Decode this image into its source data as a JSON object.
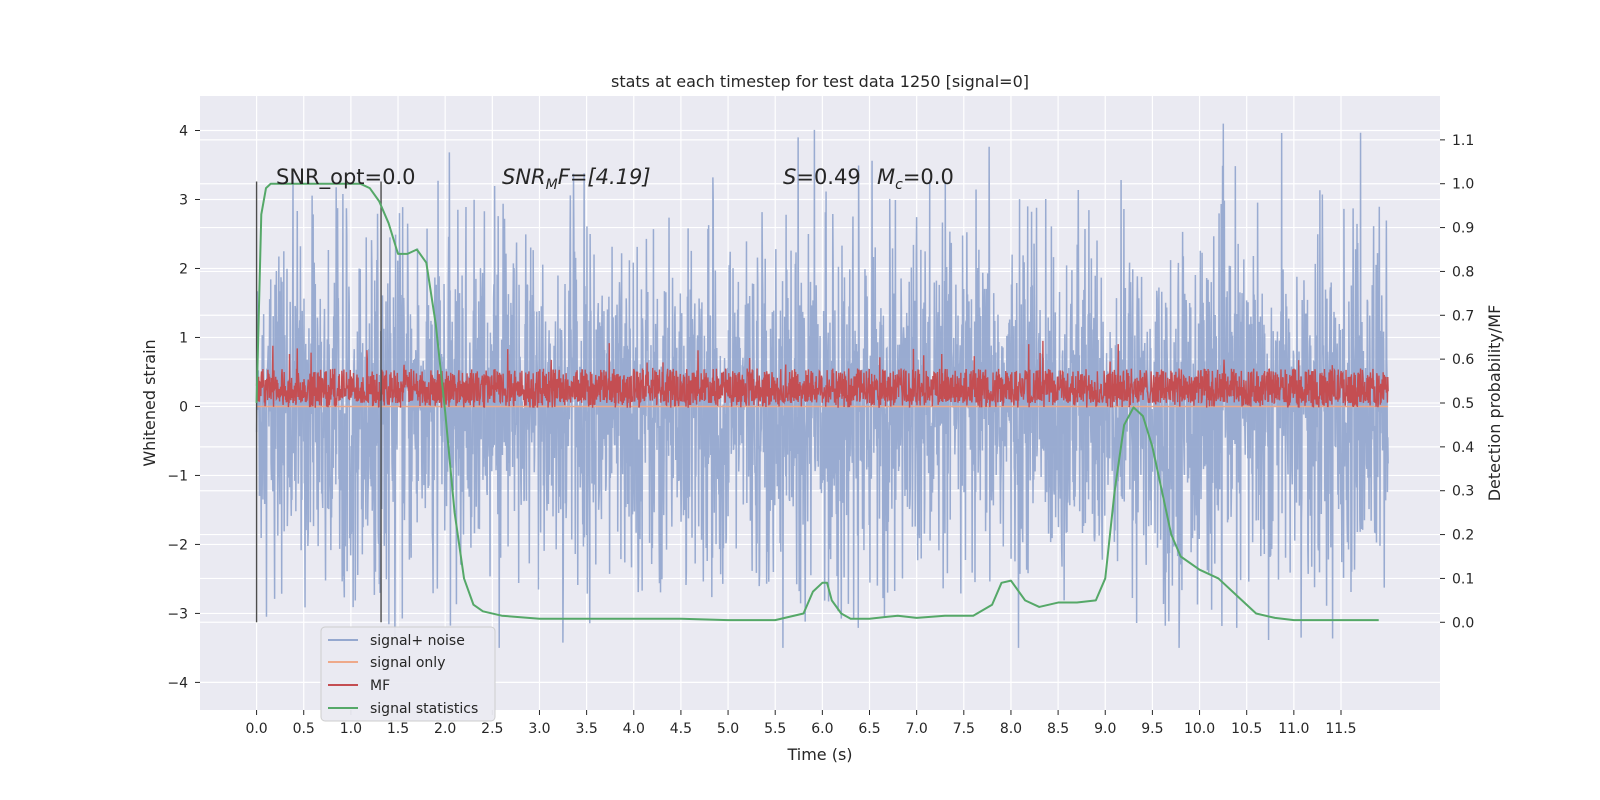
{
  "chart_data": {
    "type": "line",
    "title": "stats at each timestep for test data 1250 [signal=0]",
    "xlabel": "Time (s)",
    "ylabel": "Whitened strain",
    "ylabel_right": "Detection probability/MF",
    "xlim": [
      -0.6,
      12.55
    ],
    "ylim": [
      -4.4,
      4.5
    ],
    "ylim_right": [
      -0.2,
      1.2
    ],
    "x_ticks": [
      "0.0",
      "0.5",
      "1.0",
      "1.5",
      "2.0",
      "2.5",
      "3.0",
      "3.5",
      "4.0",
      "4.5",
      "5.0",
      "5.5",
      "6.0",
      "6.5",
      "7.0",
      "7.5",
      "8.0",
      "8.5",
      "9.0",
      "9.5",
      "10.0",
      "10.5",
      "11.0",
      "11.5"
    ],
    "y_ticks": [
      "4",
      "3",
      "2",
      "1",
      "0",
      "−1",
      "−2",
      "−3",
      "−4"
    ],
    "y_ticks_right": [
      "1.1",
      "1.0",
      "0.9",
      "0.8",
      "0.7",
      "0.6",
      "0.5",
      "0.4",
      "0.3",
      "0.2",
      "0.1",
      "0.0"
    ],
    "grid": true,
    "legend_position": "lower-left",
    "annotations": {
      "snr_opt": "SNR_opt=0.0",
      "snr_mf_sym": "SNR",
      "snr_mf_sub": "M",
      "snr_mf_rest": "F=[4.19]",
      "s_sym": "S",
      "s_val": "=0.49",
      "mc_sym": "M",
      "mc_sub": "c",
      "mc_val": "=0.0"
    },
    "vertical_markers": [
      0.0,
      1.32
    ],
    "series": [
      {
        "name": "signal+ noise",
        "color": "#95a8cf",
        "axis": "left",
        "x_range": [
          0.0,
          12.0
        ],
        "samples": 3200,
        "typical_range": [
          -2.0,
          2.0
        ],
        "peak_max": 4.1,
        "peak_min": -3.5
      },
      {
        "name": "signal only",
        "color": "#eea98a",
        "axis": "left",
        "x": [
          0.0,
          12.0
        ],
        "values": [
          0.0,
          0.0
        ]
      },
      {
        "name": "MF",
        "color": "#c44e52",
        "axis": "left",
        "x_range": [
          0.0,
          12.0
        ],
        "samples": 3200,
        "typical_range": [
          0.05,
          0.55
        ],
        "peak_max": 0.98,
        "peak_min": -0.02
      },
      {
        "name": "signal statistics",
        "color": "#55a868",
        "axis": "right",
        "x": [
          0.0,
          0.05,
          0.1,
          0.15,
          0.2,
          0.3,
          0.5,
          0.8,
          1.0,
          1.1,
          1.2,
          1.3,
          1.4,
          1.5,
          1.6,
          1.7,
          1.8,
          1.9,
          2.0,
          2.1,
          2.2,
          2.3,
          2.4,
          2.6,
          3.0,
          3.5,
          4.0,
          4.5,
          5.0,
          5.5,
          5.8,
          5.9,
          6.0,
          6.05,
          6.1,
          6.2,
          6.3,
          6.5,
          6.8,
          7.0,
          7.3,
          7.6,
          7.8,
          7.9,
          8.0,
          8.05,
          8.15,
          8.3,
          8.5,
          8.7,
          8.9,
          9.0,
          9.1,
          9.2,
          9.3,
          9.4,
          9.5,
          9.6,
          9.7,
          9.8,
          10.0,
          10.2,
          10.4,
          10.6,
          10.8,
          11.0,
          11.5,
          11.9
        ],
        "values": [
          0.5,
          0.93,
          0.99,
          1.0,
          1.0,
          1.0,
          1.0,
          1.0,
          1.0,
          1.0,
          0.99,
          0.96,
          0.91,
          0.84,
          0.84,
          0.85,
          0.82,
          0.68,
          0.48,
          0.25,
          0.1,
          0.04,
          0.025,
          0.015,
          0.008,
          0.008,
          0.008,
          0.008,
          0.005,
          0.005,
          0.02,
          0.07,
          0.09,
          0.09,
          0.05,
          0.02,
          0.008,
          0.008,
          0.015,
          0.01,
          0.015,
          0.015,
          0.04,
          0.09,
          0.095,
          0.08,
          0.05,
          0.035,
          0.045,
          0.045,
          0.05,
          0.1,
          0.3,
          0.45,
          0.49,
          0.47,
          0.4,
          0.3,
          0.2,
          0.15,
          0.12,
          0.1,
          0.06,
          0.02,
          0.01,
          0.005,
          0.005,
          0.005
        ]
      }
    ]
  }
}
